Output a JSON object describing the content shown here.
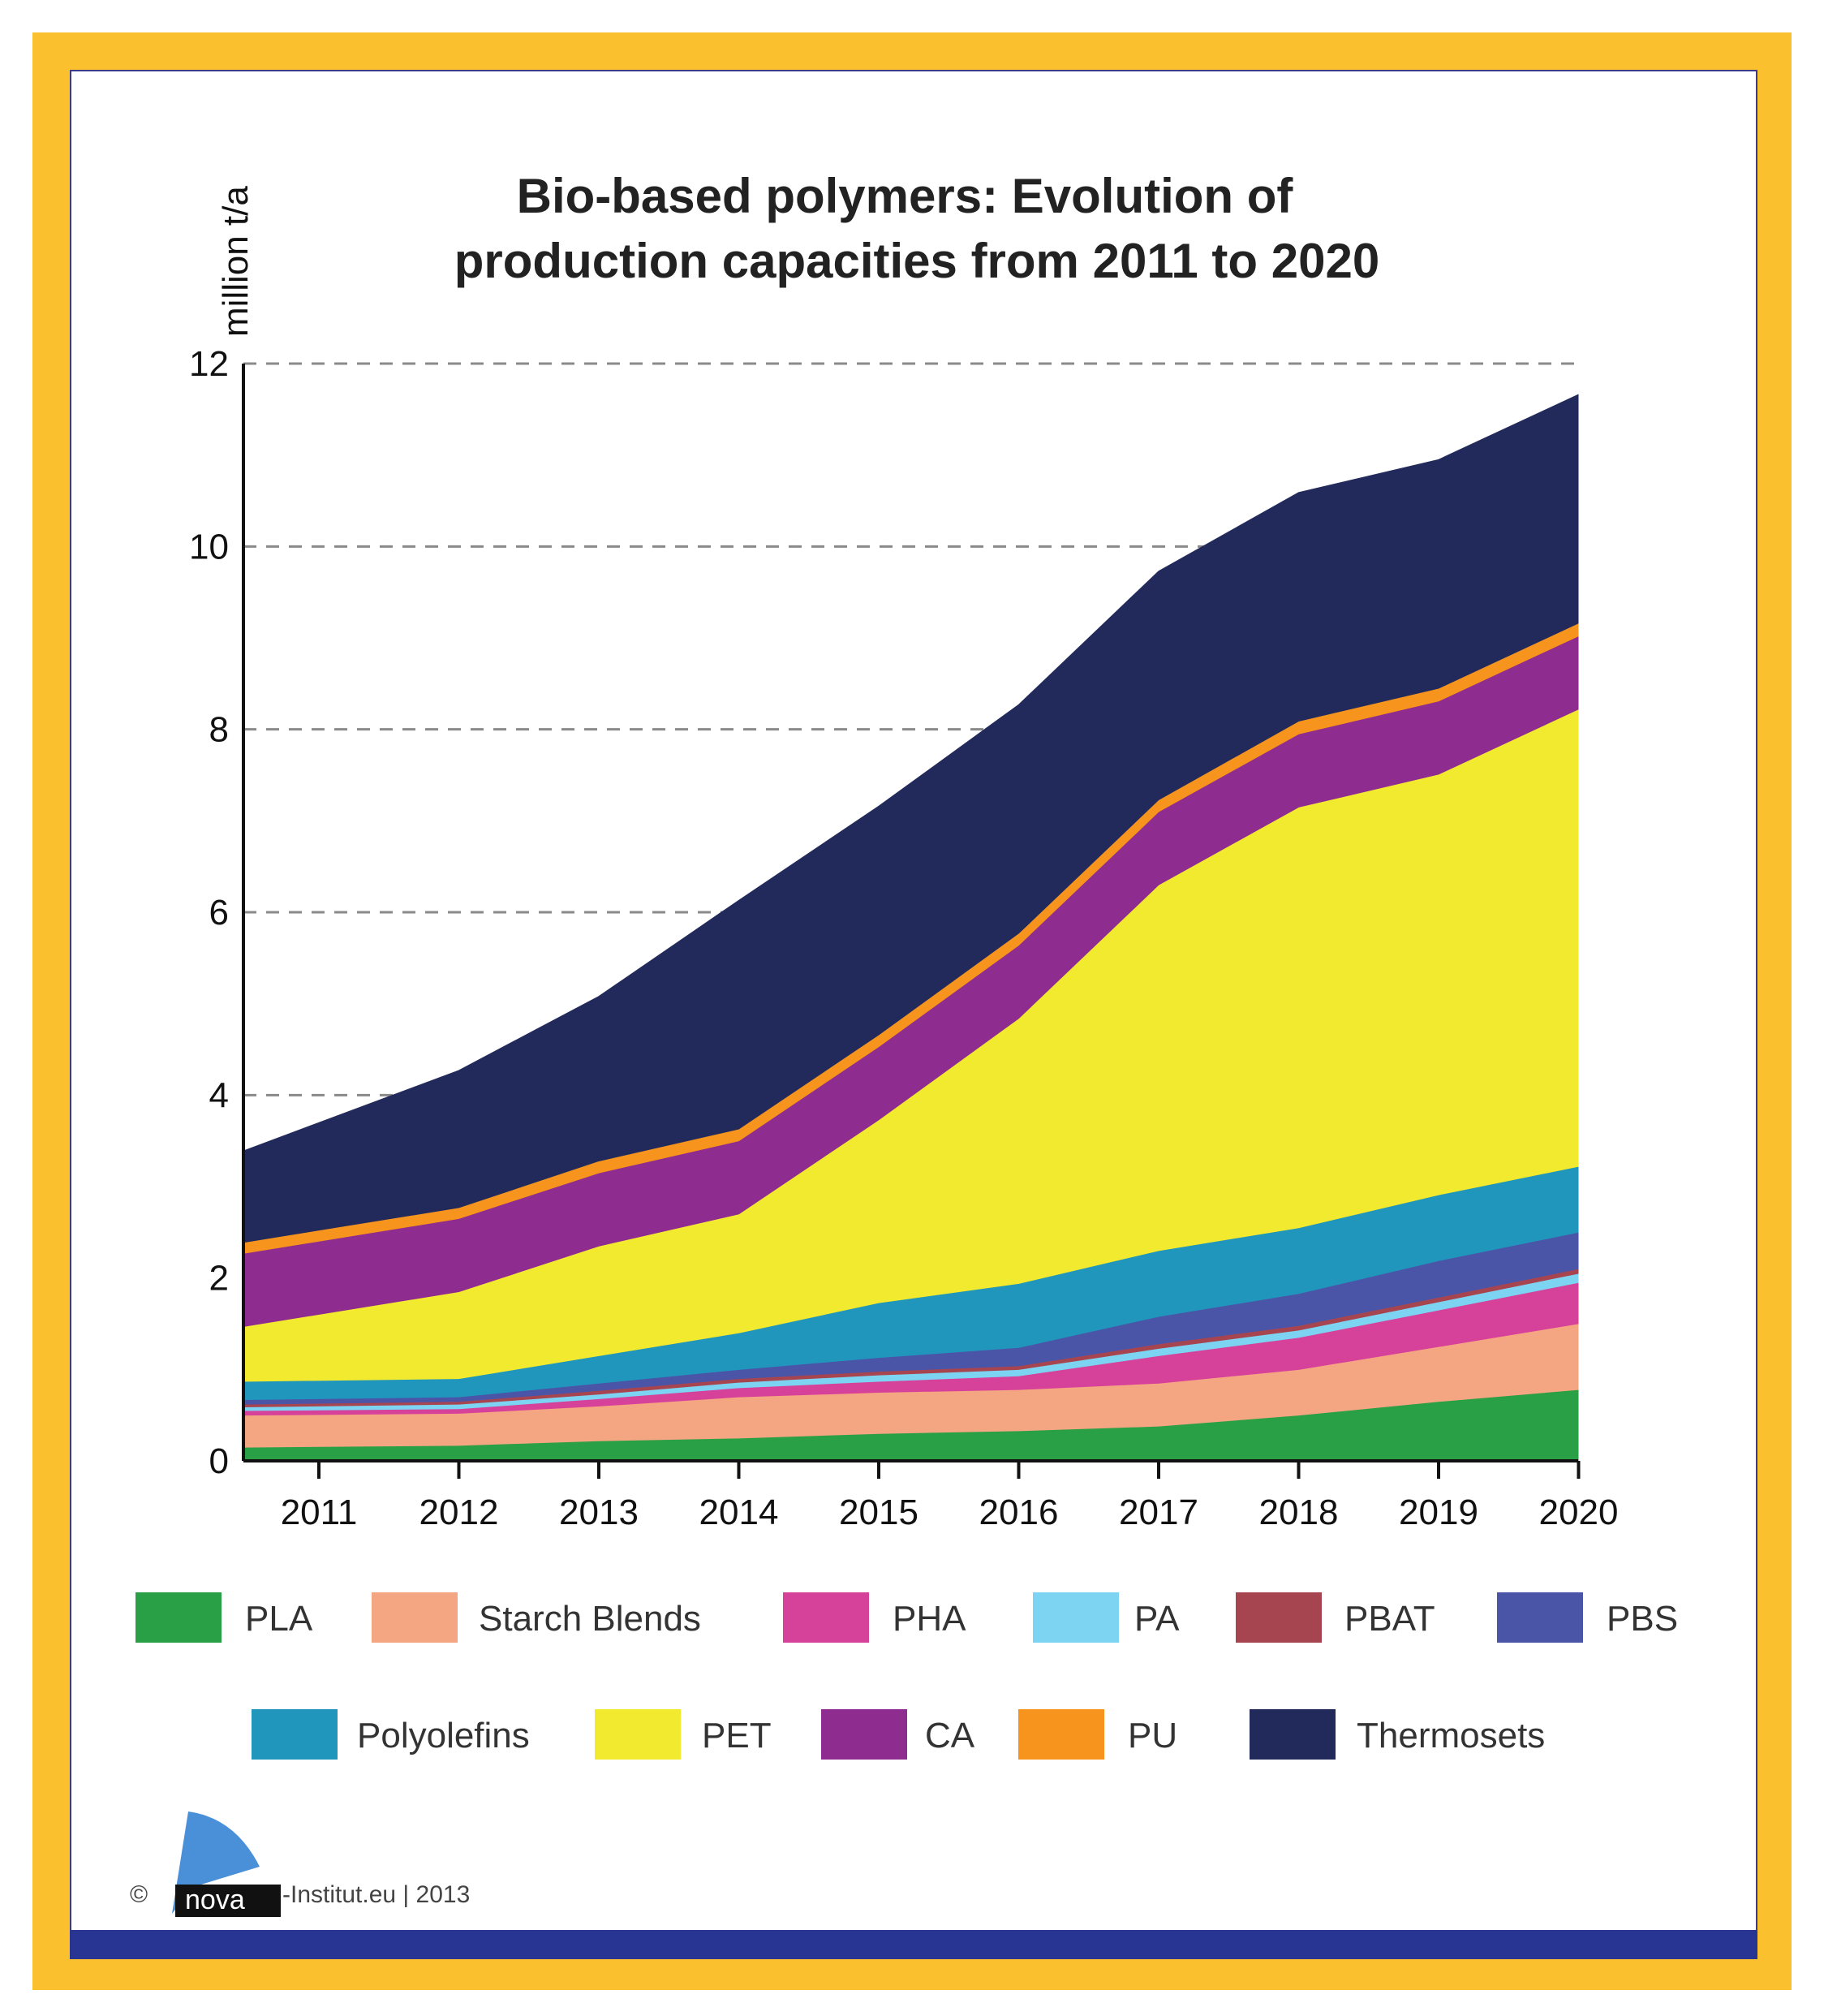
{
  "chart_data": {
    "type": "area",
    "stacked": true,
    "title_lines": [
      "Bio-based polymers: Evolution of",
      "production capacities from 2011 to 2020"
    ],
    "ylabel": "million t/a",
    "xlabel": "",
    "categories": [
      "2011",
      "2012",
      "2013",
      "2014",
      "2015",
      "2016",
      "2017",
      "2018",
      "2019",
      "2020"
    ],
    "ylim": [
      0,
      12
    ],
    "yticks": [
      "0",
      "2",
      "4",
      "6",
      "8",
      "10",
      "12"
    ],
    "grid": true,
    "legend_position": "bottom",
    "series": [
      {
        "name": "PLA",
        "color": "#2aa046",
        "values": [
          0.15,
          0.17,
          0.22,
          0.25,
          0.3,
          0.33,
          0.38,
          0.5,
          0.65,
          0.78
        ]
      },
      {
        "name": "Starch Blends",
        "color": "#f4a582",
        "values": [
          0.35,
          0.35,
          0.38,
          0.45,
          0.45,
          0.45,
          0.47,
          0.5,
          0.6,
          0.72
        ]
      },
      {
        "name": "PHA",
        "color": "#d6419a",
        "values": [
          0.05,
          0.05,
          0.08,
          0.1,
          0.12,
          0.15,
          0.3,
          0.35,
          0.4,
          0.45
        ]
      },
      {
        "name": "PA",
        "color": "#7dd4f2",
        "values": [
          0.04,
          0.05,
          0.05,
          0.06,
          0.07,
          0.07,
          0.08,
          0.08,
          0.09,
          0.1
        ]
      },
      {
        "name": "PBAT",
        "color": "#a64550",
        "values": [
          0.03,
          0.03,
          0.04,
          0.04,
          0.04,
          0.04,
          0.05,
          0.05,
          0.05,
          0.05
        ]
      },
      {
        "name": "PBS",
        "color": "#4b55a8",
        "values": [
          0.05,
          0.05,
          0.08,
          0.1,
          0.15,
          0.2,
          0.3,
          0.35,
          0.4,
          0.4
        ]
      },
      {
        "name": "Polyolefins",
        "color": "#2196bd",
        "values": [
          0.2,
          0.2,
          0.3,
          0.4,
          0.6,
          0.7,
          0.72,
          0.72,
          0.72,
          0.72
        ]
      },
      {
        "name": "PET",
        "color": "#f2ea2e",
        "values": [
          0.6,
          0.95,
          1.2,
          1.3,
          2.0,
          2.9,
          4.0,
          4.6,
          4.6,
          5.0
        ]
      },
      {
        "name": "CA",
        "color": "#8e2c8f",
        "values": [
          0.8,
          0.8,
          0.8,
          0.8,
          0.8,
          0.8,
          0.8,
          0.8,
          0.8,
          0.8
        ]
      },
      {
        "name": "PU",
        "color": "#f7941d",
        "values": [
          0.12,
          0.12,
          0.13,
          0.13,
          0.13,
          0.13,
          0.13,
          0.14,
          0.14,
          0.14
        ]
      },
      {
        "name": "Thermosets",
        "color": "#222a5b",
        "values": [
          1.0,
          1.5,
          1.8,
          2.5,
          2.5,
          2.5,
          2.5,
          2.5,
          2.5,
          2.5
        ]
      }
    ]
  },
  "footer": {
    "copyright": "©",
    "logo_text": "nova",
    "site": "-Institut.eu | 2013"
  }
}
